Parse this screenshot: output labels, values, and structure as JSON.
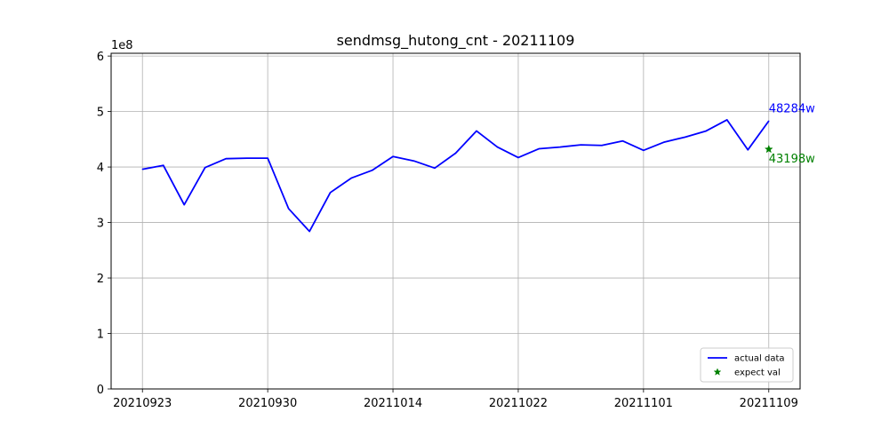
{
  "chart_data": {
    "type": "line",
    "title": "sendmsg_hutong_cnt - 20211109",
    "xlabel": "",
    "ylabel": "",
    "y_scale_label": "1e8",
    "xlim": [
      -1.5,
      31.5
    ],
    "ylim": [
      0,
      6.05
    ],
    "y_unit_multiplier": 100000000,
    "y_ticks": [
      0,
      1,
      2,
      3,
      4,
      5,
      6
    ],
    "x_ticks": [
      {
        "index": 0,
        "label": "20210923"
      },
      {
        "index": 6,
        "label": "20210930"
      },
      {
        "index": 12,
        "label": "20211014"
      },
      {
        "index": 18,
        "label": "20211022"
      },
      {
        "index": 24,
        "label": "20211101"
      },
      {
        "index": 30,
        "label": "20211109"
      }
    ],
    "grid": true,
    "legend_position": "lower-right",
    "series": [
      {
        "name": "actual data",
        "style": "line",
        "color": "#0000ff",
        "values": [
          3.96,
          4.03,
          3.32,
          3.99,
          4.15,
          4.16,
          4.16,
          3.25,
          2.84,
          3.54,
          3.8,
          3.94,
          4.19,
          4.11,
          3.98,
          4.25,
          4.65,
          4.36,
          4.17,
          4.33,
          4.36,
          4.4,
          4.39,
          4.47,
          4.3,
          4.45,
          4.54,
          4.65,
          4.85,
          4.31,
          4.83
        ]
      },
      {
        "name": "expect val",
        "style": "star-marker",
        "color": "#008000",
        "points": [
          {
            "x": 30,
            "y": 4.32
          }
        ]
      }
    ],
    "annotations": [
      {
        "text": "48284w",
        "color": "#0000ff",
        "x": 30,
        "y": 5.0
      },
      {
        "text": "43198w",
        "color": "#008000",
        "x": 30,
        "y": 4.1
      }
    ]
  }
}
